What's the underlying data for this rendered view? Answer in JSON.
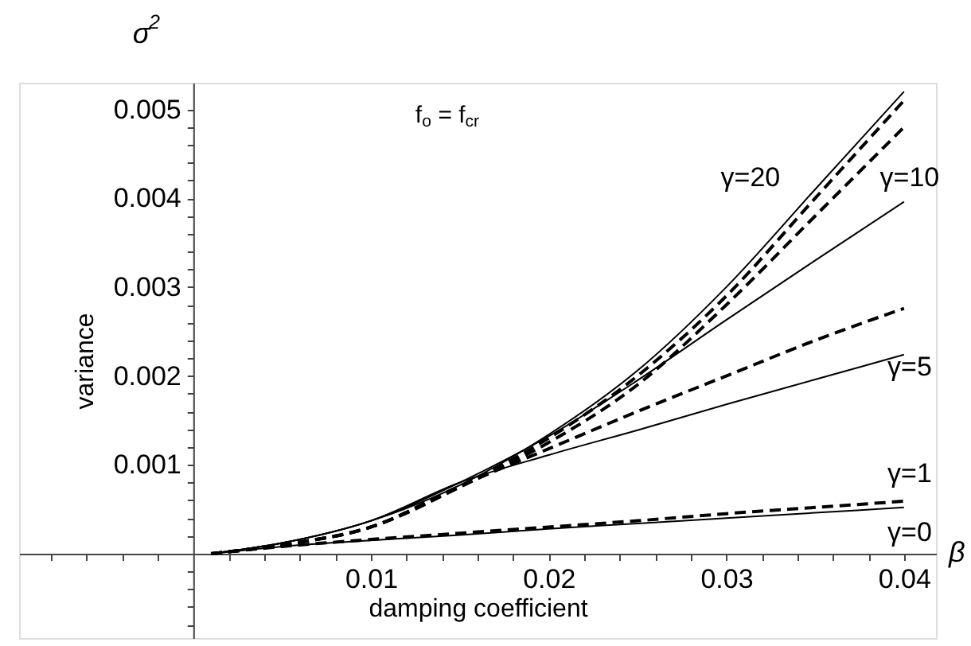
{
  "chart_data": {
    "type": "line",
    "xlabel": "damping coefficient",
    "ylabel": "variance",
    "annotations": [
      "σ$^{2}$",
      "f$_{o}$ = f$_{cr}$",
      "β",
      "γ=20",
      "γ=10",
      "γ=5",
      "γ=1",
      "γ=0"
    ],
    "x": [
      0.001,
      0.005,
      0.01,
      0.015,
      0.02,
      0.025,
      0.03,
      0.035,
      0.04
    ],
    "series": [
      {
        "color": "#000000",
        "line_style": "solid",
        "values": [
          0,
          0.00012,
          0.00037,
          0.00077,
          0.00134,
          0.00206,
          0.003,
          0.0041,
          0.0052
        ]
      },
      {
        "color": "#000000",
        "line_style": "dashed",
        "values": [
          0,
          0.0001,
          0.0003,
          0.00075,
          0.0013,
          0.002,
          0.0029,
          0.004,
          0.0051
        ]
      },
      {
        "color": "#000000",
        "line_style": "dashed",
        "values": [
          0,
          0.0001,
          0.0003,
          0.00075,
          0.00125,
          0.0019,
          0.0028,
          0.0038,
          0.0048
        ]
      },
      {
        "color": "#000000",
        "line_style": "solid",
        "values": [
          0,
          0.00012,
          0.00037,
          0.0008,
          0.00132,
          0.00195,
          0.00263,
          0.0033,
          0.00396
        ]
      },
      {
        "color": "#000000",
        "line_style": "dashed",
        "values": [
          0,
          0.0001,
          0.0003,
          0.00076,
          0.00118,
          0.0016,
          0.002,
          0.0024,
          0.00276
        ]
      },
      {
        "color": "#000000",
        "line_style": "solid",
        "values": [
          0,
          0.00012,
          0.00037,
          0.0008,
          0.00111,
          0.00139,
          0.00168,
          0.00196,
          0.00224
        ]
      },
      {
        "color": "#000000",
        "line_style": "dashed",
        "values": [
          0,
          8e-05,
          0.00016,
          0.00023,
          0.0003,
          0.00037,
          0.00045,
          0.00052,
          0.00059
        ]
      },
      {
        "color": "#000000",
        "line_style": "solid",
        "values": [
          0,
          8e-05,
          0.00015,
          0.00021,
          0.00028,
          0.00034,
          0.0004,
          0.00046,
          0.00052
        ]
      }
    ],
    "xlim": [
      -0.0098,
      0.0418
    ],
    "ylim": [
      -0.00095,
      0.0053
    ],
    "xticks": [
      {
        "value": -0.008,
        "label": null
      },
      {
        "value": -0.006,
        "label": null
      },
      {
        "value": -0.004,
        "label": null
      },
      {
        "value": -0.002,
        "label": null
      },
      {
        "value": 0.002,
        "label": null
      },
      {
        "value": 0.004,
        "label": null
      },
      {
        "value": 0.006,
        "label": null
      },
      {
        "value": 0.008,
        "label": null
      },
      0.01,
      {
        "value": 0.012,
        "label": null
      },
      {
        "value": 0.014,
        "label": null
      },
      {
        "value": 0.016,
        "label": null
      },
      {
        "value": 0.018,
        "label": null
      },
      0.02,
      {
        "value": 0.022,
        "label": null
      },
      {
        "value": 0.024,
        "label": null
      },
      {
        "value": 0.026,
        "label": null
      },
      {
        "value": 0.028,
        "label": null
      },
      0.03,
      {
        "value": 0.032,
        "label": null
      },
      {
        "value": 0.034,
        "label": null
      },
      {
        "value": 0.036,
        "label": null
      },
      {
        "value": 0.038,
        "label": null
      },
      0.04
    ],
    "yticks": [
      {
        "value": -0.0008,
        "label": null
      },
      {
        "value": -0.0006,
        "label": null
      },
      {
        "value": -0.0004,
        "label": null
      },
      {
        "value": -0.0002,
        "label": null
      },
      {
        "value": 0.0002,
        "label": null
      },
      {
        "value": 0.0004,
        "label": null
      },
      {
        "value": 0.0006,
        "label": null
      },
      {
        "value": 0.0008,
        "label": null
      },
      0.001,
      {
        "value": 0.0012,
        "label": null
      },
      {
        "value": 0.0014,
        "label": null
      },
      {
        "value": 0.0016,
        "label": null
      },
      {
        "value": 0.0018,
        "label": null
      },
      0.002,
      {
        "value": 0.0022,
        "label": null
      },
      {
        "value": 0.0024,
        "label": null
      },
      {
        "value": 0.0026,
        "label": null
      },
      {
        "value": 0.0028,
        "label": null
      },
      0.003,
      {
        "value": 0.0032,
        "label": null
      },
      {
        "value": 0.0034,
        "label": null
      },
      {
        "value": 0.0036,
        "label": null
      },
      {
        "value": 0.0038,
        "label": null
      },
      0.004,
      {
        "value": 0.0042,
        "label": null
      },
      {
        "value": 0.0044,
        "label": null
      },
      {
        "value": 0.0046,
        "label": null
      },
      {
        "value": 0.0048,
        "label": null
      },
      0.005
    ],
    "grid": false,
    "marker": "none"
  }
}
